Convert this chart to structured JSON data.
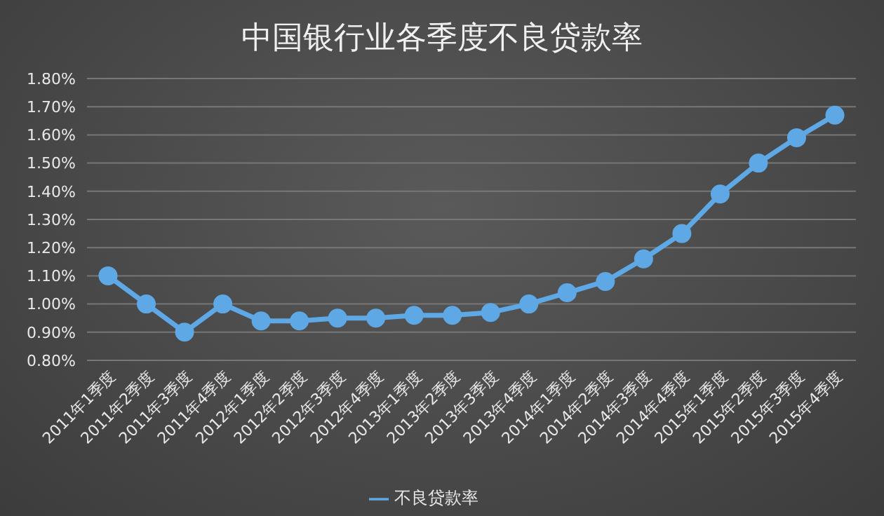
{
  "chart_data": {
    "type": "line",
    "title": "中国银行业各季度不良贷款率",
    "categories": [
      "2011年1季度",
      "2011年2季度",
      "2011年3季度",
      "2011年4季度",
      "2012年1季度",
      "2012年2季度",
      "2012年3季度",
      "2012年4季度",
      "2013年1季度",
      "2013年2季度",
      "2013年3季度",
      "2013年4季度",
      "2014年1季度",
      "2014年2季度",
      "2014年3季度",
      "2014年4季度",
      "2015年1季度",
      "2015年2季度",
      "2015年3季度",
      "2015年4季度"
    ],
    "series": [
      {
        "name": "不良贷款率",
        "color": "#5ea8e6",
        "values": [
          1.1,
          1.0,
          0.9,
          1.0,
          0.94,
          0.94,
          0.95,
          0.95,
          0.96,
          0.96,
          0.97,
          1.0,
          1.04,
          1.08,
          1.16,
          1.25,
          1.39,
          1.5,
          1.59,
          1.67
        ]
      }
    ],
    "ylim": [
      0.8,
      1.8
    ],
    "yticks": [
      {
        "value": 0.8,
        "label": "0.80%"
      },
      {
        "value": 0.9,
        "label": "0.90%"
      },
      {
        "value": 1.0,
        "label": "1.00%"
      },
      {
        "value": 1.1,
        "label": "1.10%"
      },
      {
        "value": 1.2,
        "label": "1.20%"
      },
      {
        "value": 1.3,
        "label": "1.30%"
      },
      {
        "value": 1.4,
        "label": "1.40%"
      },
      {
        "value": 1.5,
        "label": "1.50%"
      },
      {
        "value": 1.6,
        "label": "1.60%"
      },
      {
        "value": 1.7,
        "label": "1.70%"
      },
      {
        "value": 1.8,
        "label": "1.80%"
      }
    ],
    "grid": "y",
    "legend": "bottom",
    "marker": "circle",
    "line_style": "solid"
  }
}
